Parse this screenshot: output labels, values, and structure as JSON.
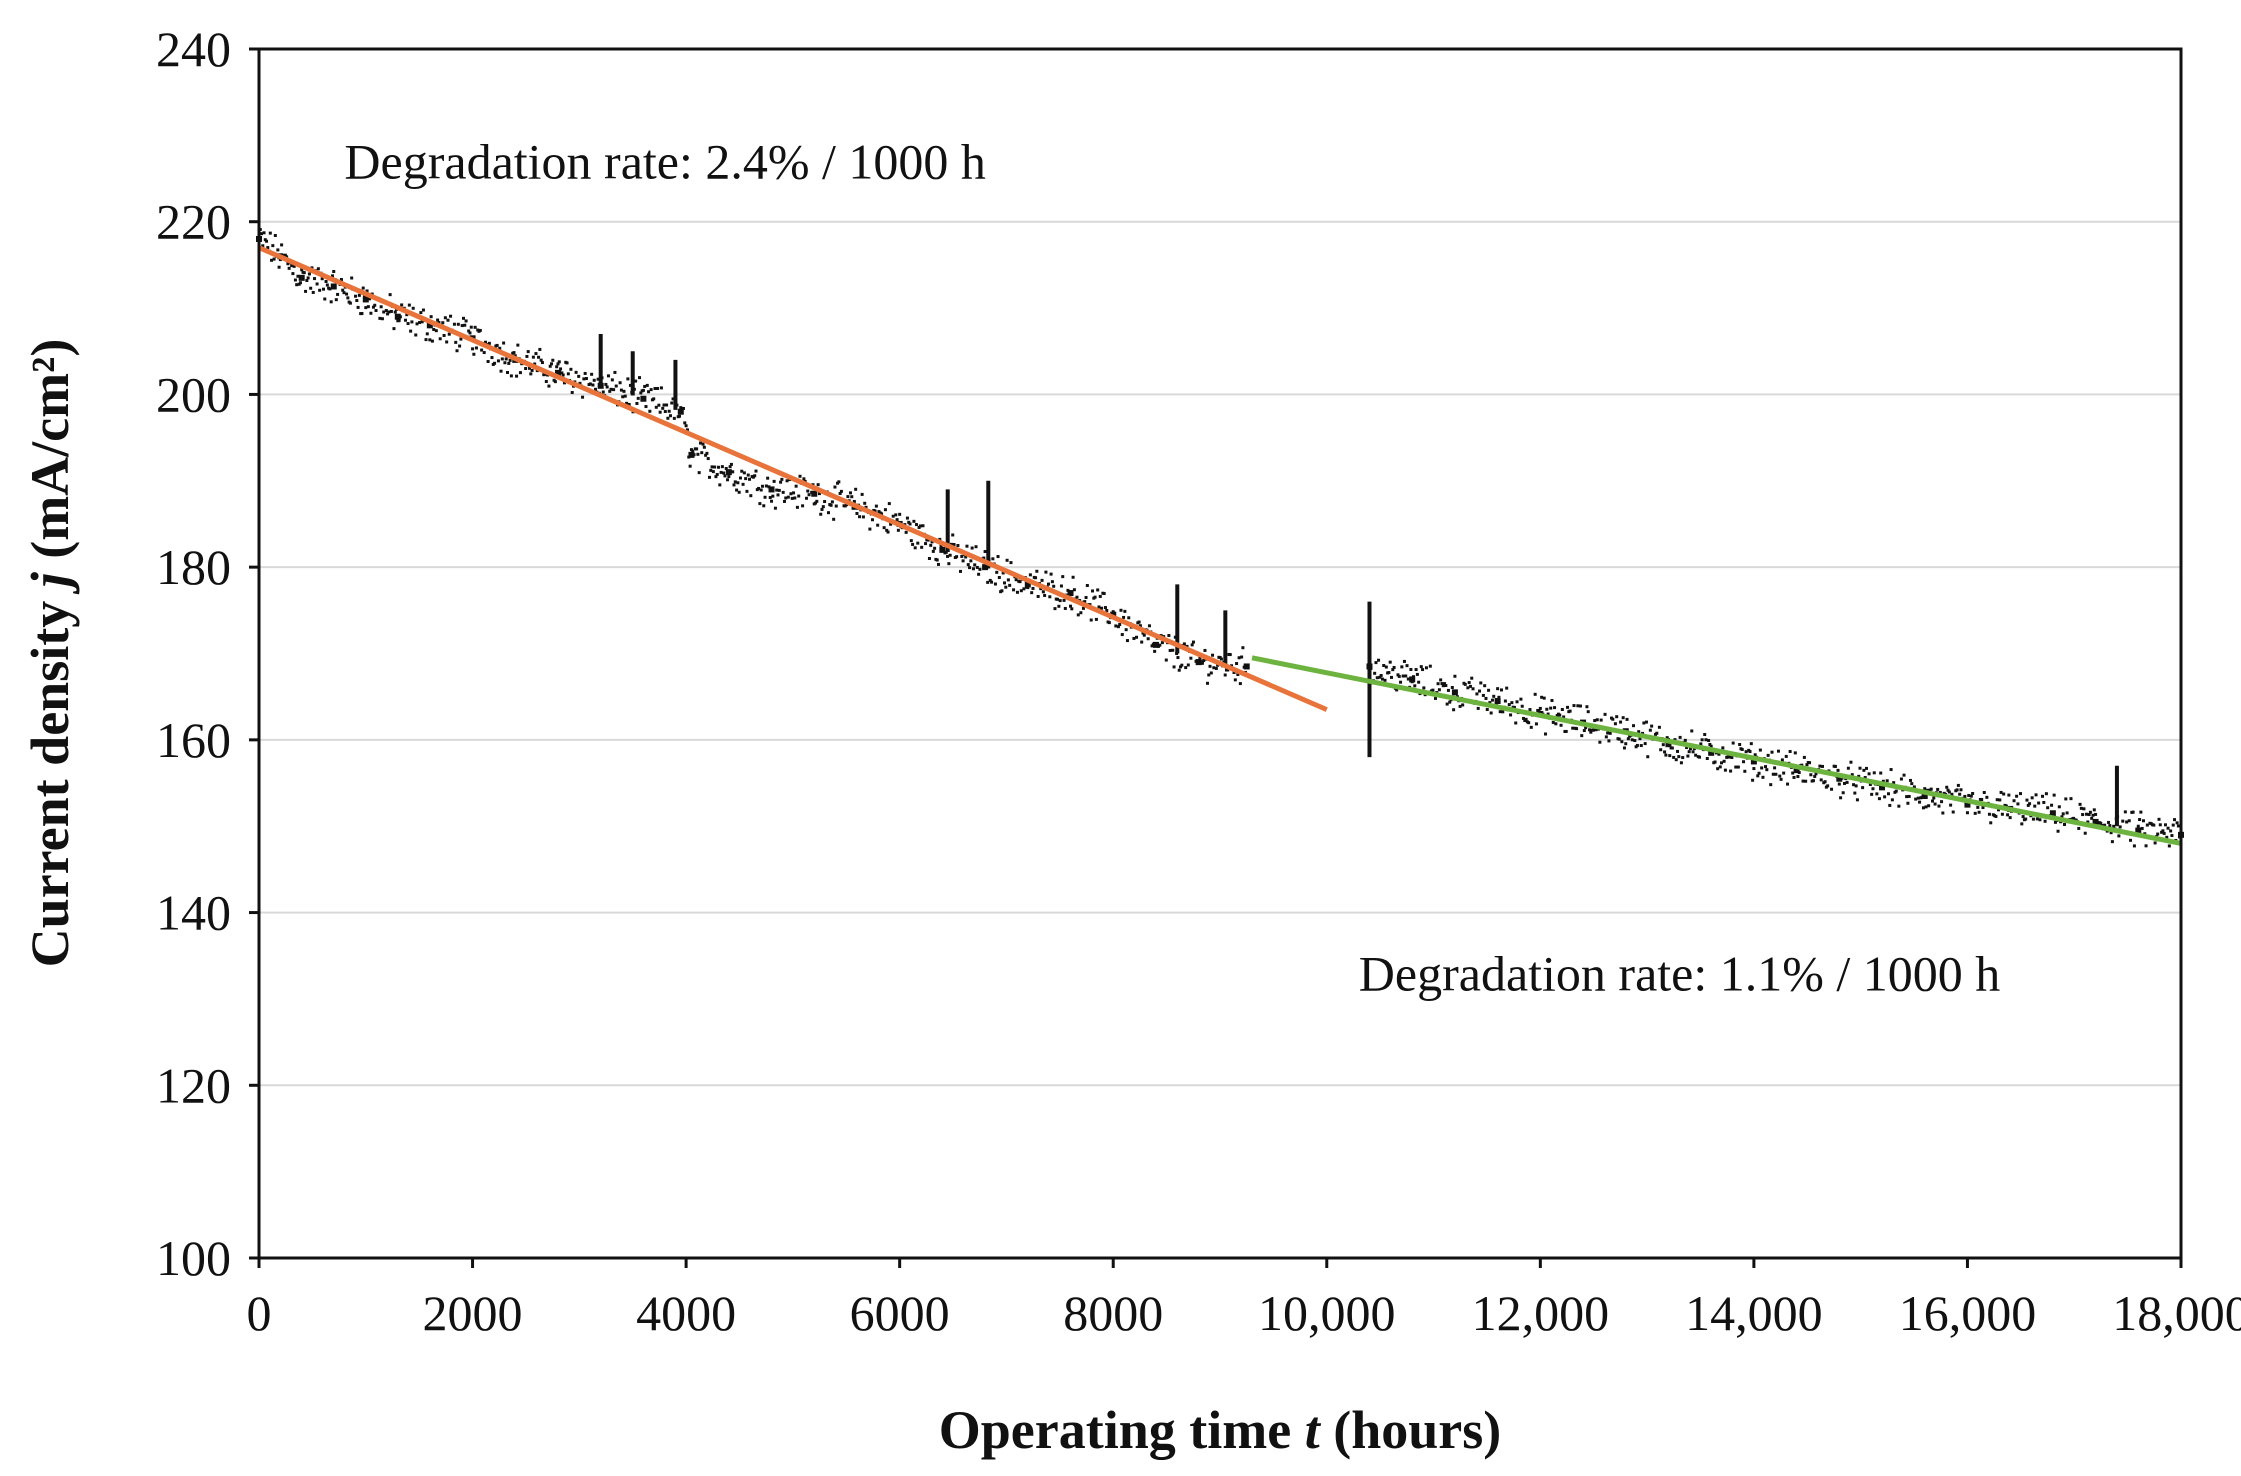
{
  "chart_data": {
    "type": "scatter",
    "xlabel": "Operating time ",
    "xlabel_var": "t",
    "xlabel_unit": " (hours)",
    "ylabel": "Current density ",
    "ylabel_var": "j",
    "ylabel_unit": " (mA/cm²)",
    "xlim": [
      0,
      18000
    ],
    "ylim": [
      100,
      240
    ],
    "x_ticks": [
      0,
      2000,
      4000,
      6000,
      8000,
      10000,
      12000,
      14000,
      16000,
      18000
    ],
    "x_tick_labels": [
      "0",
      "2000",
      "4000",
      "6000",
      "8000",
      "10,000",
      "12,000",
      "14,000",
      "16,000",
      "18,000"
    ],
    "y_ticks": [
      100,
      120,
      140,
      160,
      180,
      200,
      220,
      240
    ],
    "y_tick_labels": [
      "100",
      "120",
      "140",
      "160",
      "180",
      "200",
      "220",
      "240"
    ],
    "grid": "horizontal",
    "colors": {
      "data": "#111111",
      "fit1": "#e8743b",
      "fit2": "#6db33f",
      "grid": "#d9d9d9"
    },
    "series": [
      {
        "kind": "measurement",
        "x": [
          0,
          200,
          400,
          700,
          1000,
          1300,
          1600,
          2000,
          2400,
          2800,
          3200,
          3600,
          3950,
          4050,
          4400,
          4800,
          5200,
          5600,
          6000,
          6400,
          6800,
          7200,
          7600,
          8000,
          8400,
          8800,
          9250
        ],
        "y": [
          218,
          216,
          213.5,
          212.5,
          211,
          209,
          208,
          206.5,
          204,
          202.5,
          201,
          199.5,
          198,
          193,
          191,
          189,
          188.5,
          187,
          185,
          182,
          180,
          178,
          177,
          174.5,
          171,
          169,
          168.5
        ]
      },
      {
        "kind": "measurement",
        "x": [
          10400,
          10800,
          11200,
          11600,
          12000,
          12400,
          12800,
          13200,
          13600,
          14000,
          14400,
          14800,
          15200,
          15600,
          16000,
          16400,
          16800,
          17200,
          17600,
          18000
        ],
        "y": [
          168.5,
          167,
          165.5,
          164.5,
          163,
          162,
          161,
          159.5,
          158.5,
          157.5,
          156.5,
          155.5,
          154.5,
          153.5,
          152.5,
          152,
          151.5,
          150.5,
          149.5,
          149
        ]
      },
      {
        "kind": "fit",
        "x": [
          0,
          10000
        ],
        "y": [
          217,
          163.5
        ]
      },
      {
        "kind": "fit",
        "x": [
          9300,
          18000
        ],
        "y": [
          169.5,
          148
        ]
      }
    ],
    "spikes": [
      {
        "x": 3200,
        "top": 207
      },
      {
        "x": 3500,
        "top": 205
      },
      {
        "x": 3900,
        "top": 204
      },
      {
        "x": 6450,
        "top": 189
      },
      {
        "x": 6830,
        "top": 190
      },
      {
        "x": 8600,
        "top": 178
      },
      {
        "x": 9050,
        "top": 175
      },
      {
        "x": 10400,
        "top": 176,
        "bottom": 158
      },
      {
        "x": 17400,
        "top": 157
      }
    ],
    "annotations": [
      {
        "text": "Degradation rate: 2.4% / 1000 h",
        "x": 800,
        "y": 225
      },
      {
        "text": "Degradation rate: 1.1% / 1000 h",
        "x": 10300,
        "y": 131
      }
    ]
  }
}
